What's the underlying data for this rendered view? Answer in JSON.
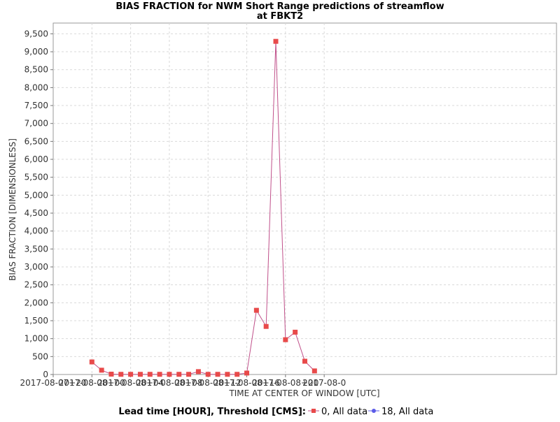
{
  "chart_data": {
    "type": "line",
    "title": "BIAS FRACTION for NWM Short Range predictions of streamflow",
    "subtitle": "at FBKT2",
    "xlabel": "TIME AT CENTER OF WINDOW [UTC]",
    "ylabel": "BIAS FRACTION [DIMENSIONLESS]",
    "x_tick_labels": [
      "2017-08-07+20",
      "2017-08-08+00",
      "2017-08-08+04",
      "2017-08-08+08",
      "2017-08-08+12",
      "2017-08-08+16",
      "2017-08-08+20",
      "2017-08-09+00"
    ],
    "x_tick_display": [
      "2017-08-07+20",
      "2017-08-08+00",
      "2017-08-08+04",
      "2017-08-08+08",
      "2017-08-08+12",
      "2017-08-08+16",
      "2017-08-08+20",
      "2017-08-0"
    ],
    "y_tick_labels": [
      "0",
      "500",
      "1,000",
      "1,500",
      "2,000",
      "2,500",
      "3,000",
      "3,500",
      "4,000",
      "4,500",
      "5,000",
      "5,500",
      "6,000",
      "6,500",
      "7,000",
      "7,500",
      "8,000",
      "8,500",
      "9,000",
      "9,500"
    ],
    "ylim": [
      0,
      9800
    ],
    "grid": true,
    "legend_position": "bottom",
    "legend_title": "Lead time [HOUR], Threshold [CMS]:",
    "series": [
      {
        "name": "0, All data",
        "color": "#e84a4a",
        "line_color": "#c0508a",
        "marker": "square",
        "x": [
          "2017-08-08+00",
          "2017-08-08+01",
          "2017-08-08+02",
          "2017-08-08+03",
          "2017-08-08+04",
          "2017-08-08+05",
          "2017-08-08+06",
          "2017-08-08+07",
          "2017-08-08+08",
          "2017-08-08+09",
          "2017-08-08+10",
          "2017-08-08+11",
          "2017-08-08+12",
          "2017-08-08+13",
          "2017-08-08+14",
          "2017-08-08+15",
          "2017-08-08+16",
          "2017-08-08+17",
          "2017-08-08+18",
          "2017-08-08+19",
          "2017-08-08+20",
          "2017-08-08+21",
          "2017-08-08+22",
          "2017-08-08+23"
        ],
        "y": [
          350,
          120,
          10,
          5,
          5,
          5,
          5,
          5,
          5,
          5,
          5,
          80,
          5,
          5,
          5,
          5,
          40,
          1790,
          1340,
          9290,
          970,
          1180,
          370,
          100
        ]
      },
      {
        "name": "18, All data",
        "color": "#5b5be8",
        "marker": "circle",
        "x": [],
        "y": []
      }
    ]
  }
}
